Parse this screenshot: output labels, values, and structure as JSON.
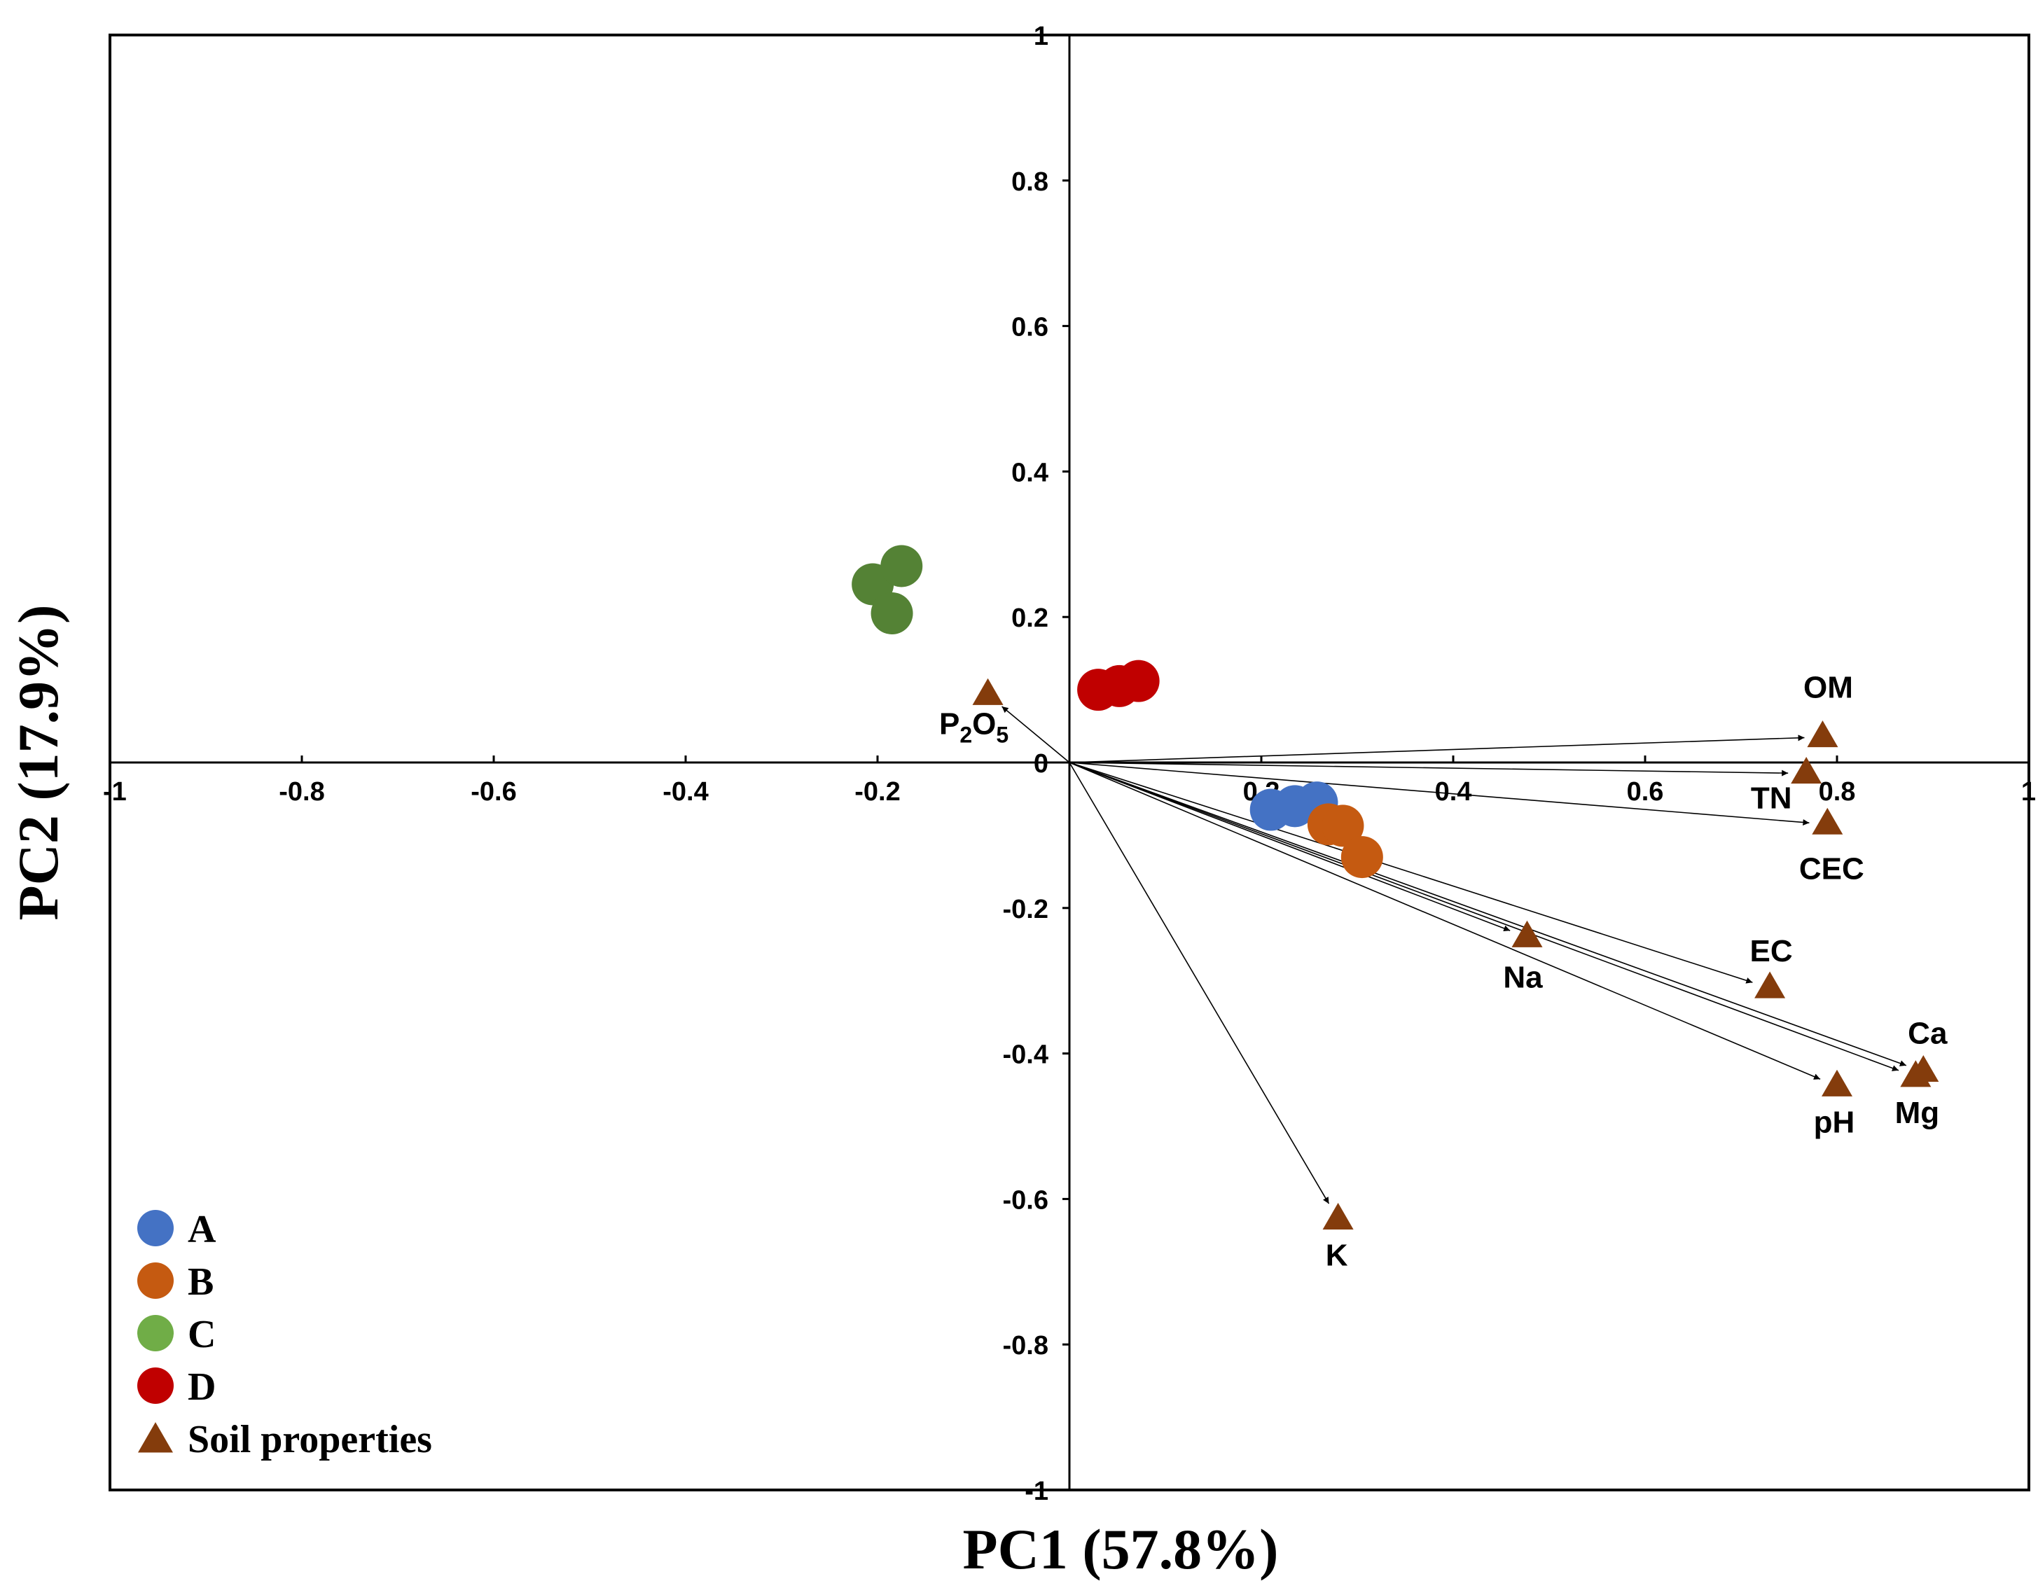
{
  "chart_data": {
    "type": "scatter",
    "subtype": "pca-biplot",
    "title": "",
    "xlabel": "PC1 (57.8%)",
    "ylabel": "PC2 (17.9%)",
    "xlim": [
      -1,
      1
    ],
    "ylim": [
      -1,
      1
    ],
    "x_ticks": [
      -1,
      -0.8,
      -0.6,
      -0.4,
      -0.2,
      0,
      0.2,
      0.4,
      0.6,
      0.8,
      1
    ],
    "x_tick_labels": [
      "-1",
      "-0.8",
      "-0.6",
      "-0.4",
      "-0.2",
      "0",
      "0.2",
      "0.4",
      "0.6",
      "0.8",
      "1"
    ],
    "y_ticks": [
      1,
      0.8,
      0.6,
      0.4,
      0.2,
      0,
      -0.2,
      -0.4,
      -0.6,
      -0.8,
      -1
    ],
    "y_tick_labels": [
      "1",
      "0.8",
      "0.6",
      "0.4",
      "0.2",
      "0",
      "-0.2",
      "-0.4",
      "-0.6",
      "-0.8",
      "-1"
    ],
    "grid": false,
    "legend_position": "bottom-left",
    "series": [
      {
        "name": "A",
        "color": "#4472c4",
        "marker": "circle",
        "points": [
          [
            0.21,
            -0.065
          ],
          [
            0.235,
            -0.06
          ],
          [
            0.258,
            -0.055
          ]
        ]
      },
      {
        "name": "B",
        "color": "#c55a11",
        "marker": "circle",
        "points": [
          [
            0.27,
            -0.085
          ],
          [
            0.285,
            -0.087
          ],
          [
            0.305,
            -0.13
          ]
        ]
      },
      {
        "name": "C",
        "color": "#548235",
        "marker": "circle",
        "points": [
          [
            -0.205,
            0.245
          ],
          [
            -0.175,
            0.27
          ],
          [
            -0.185,
            0.205
          ]
        ]
      },
      {
        "name": "D",
        "color": "#c00000",
        "marker": "circle",
        "points": [
          [
            0.03,
            0.1
          ],
          [
            0.052,
            0.105
          ],
          [
            0.072,
            0.112
          ]
        ]
      }
    ],
    "soil_properties": {
      "name": "Soil properties",
      "color": "#843c0c",
      "marker": "triangle",
      "vectors": [
        {
          "label": "OM",
          "x": 0.785,
          "y": 0.035
        },
        {
          "label": "TN",
          "x": 0.768,
          "y": -0.015
        },
        {
          "label": "CEC",
          "x": 0.79,
          "y": -0.085
        },
        {
          "label": "Na",
          "x": 0.477,
          "y": -0.24
        },
        {
          "label": "EC",
          "x": 0.73,
          "y": -0.31
        },
        {
          "label": "Ca",
          "x": 0.89,
          "y": -0.425
        },
        {
          "label": "Mg",
          "x": 0.882,
          "y": -0.432
        },
        {
          "label": "pH",
          "x": 0.8,
          "y": -0.445
        },
        {
          "label": "K",
          "x": 0.28,
          "y": -0.628
        },
        {
          "label": "P2O5",
          "x": -0.085,
          "y": 0.093
        }
      ],
      "p2o5_label": {
        "main": "P",
        "sub1": "2",
        "mid": "O",
        "sub2": "5"
      }
    },
    "legend": [
      {
        "label": "A",
        "color": "#4472c4",
        "marker": "circle"
      },
      {
        "label": "B",
        "color": "#c55a11",
        "marker": "circle"
      },
      {
        "label": "C",
        "color": "#70ad47",
        "marker": "circle"
      },
      {
        "label": "D",
        "color": "#c00000",
        "marker": "circle"
      },
      {
        "label": "Soil properties",
        "color": "#843c0c",
        "marker": "triangle"
      }
    ]
  }
}
